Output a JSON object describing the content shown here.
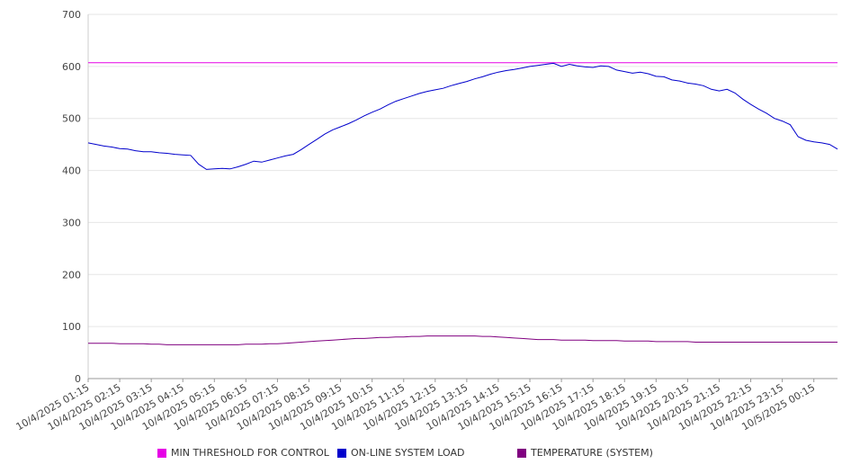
{
  "chart_data": {
    "type": "line",
    "ylim": [
      0,
      700
    ],
    "yticks": [
      0,
      100,
      200,
      300,
      400,
      500,
      600,
      700
    ],
    "x_tick_labels": [
      "10/4/2025 01:15",
      "10/4/2025 02:15",
      "10/4/2025 03:15",
      "10/4/2025 04:15",
      "10/4/2025 05:15",
      "10/4/2025 06:15",
      "10/4/2025 07:15",
      "10/4/2025 08:15",
      "10/4/2025 09:15",
      "10/4/2025 10:15",
      "10/4/2025 11:15",
      "10/4/2025 12:15",
      "10/4/2025 13:15",
      "10/4/2025 14:15",
      "10/4/2025 15:15",
      "10/4/2025 16:15",
      "10/4/2025 17:15",
      "10/4/2025 18:15",
      "10/4/2025 19:15",
      "10/4/2025 20:15",
      "10/4/2025 21:15",
      "10/4/2025 22:15",
      "10/4/2025 23:15",
      "10/5/2025 00:15"
    ],
    "x_hours": [
      1.25,
      1.5,
      1.75,
      2,
      2.25,
      2.5,
      2.75,
      3,
      3.25,
      3.5,
      3.75,
      4,
      4.25,
      4.5,
      4.75,
      5,
      5.25,
      5.5,
      5.75,
      6,
      6.25,
      6.5,
      6.75,
      7,
      7.25,
      7.5,
      7.75,
      8,
      8.25,
      8.5,
      8.75,
      9,
      9.25,
      9.5,
      9.75,
      10,
      10.25,
      10.5,
      10.75,
      11,
      11.25,
      11.5,
      11.75,
      12,
      12.25,
      12.5,
      12.75,
      13,
      13.25,
      13.5,
      13.75,
      14,
      14.25,
      14.5,
      14.75,
      15,
      15.25,
      15.5,
      15.75,
      16,
      16.25,
      16.5,
      16.75,
      17,
      17.25,
      17.5,
      17.75,
      18,
      18.25,
      18.5,
      18.75,
      19,
      19.25,
      19.5,
      19.75,
      20,
      20.25,
      20.5,
      20.75,
      21,
      21.25,
      21.5,
      21.75,
      22,
      22.25,
      22.5,
      22.75,
      23,
      23.25,
      23.5,
      23.75,
      24,
      24.25,
      24.5,
      24.75,
      25
    ],
    "series": [
      {
        "name": "MIN THRESHOLD FOR CONTROL",
        "color": "#e600e6",
        "values": [
          607,
          607
        ]
      },
      {
        "name": "ON-LINE SYSTEM LOAD",
        "color": "#0000cc",
        "values": [
          453,
          450,
          447,
          445,
          442,
          441,
          438,
          436,
          436,
          434,
          433,
          431,
          430,
          429,
          412,
          402,
          403,
          404,
          403,
          407,
          412,
          418,
          416,
          420,
          424,
          428,
          431,
          440,
          450,
          460,
          470,
          478,
          484,
          490,
          497,
          505,
          512,
          518,
          526,
          533,
          538,
          543,
          548,
          552,
          555,
          558,
          563,
          567,
          571,
          576,
          580,
          585,
          589,
          592,
          594,
          597,
          600,
          602,
          604,
          606,
          600,
          604,
          601,
          599,
          598,
          601,
          600,
          593,
          590,
          587,
          589,
          586,
          581,
          580,
          574,
          572,
          568,
          566,
          563,
          556,
          553,
          556,
          549,
          537,
          527,
          518,
          510,
          500,
          495,
          488,
          465,
          458,
          455,
          453,
          450,
          441
        ]
      },
      {
        "name": "TEMPERATURE (SYSTEM)",
        "color": "#800080",
        "values": [
          68,
          68,
          68,
          68,
          67,
          67,
          67,
          67,
          66,
          66,
          65,
          65,
          65,
          65,
          65,
          65,
          65,
          65,
          65,
          65,
          66,
          66,
          66,
          67,
          67,
          68,
          69,
          70,
          71,
          72,
          73,
          74,
          75,
          76,
          77,
          77,
          78,
          79,
          79,
          80,
          80,
          81,
          81,
          82,
          82,
          82,
          82,
          82,
          82,
          82,
          81,
          81,
          80,
          79,
          78,
          77,
          76,
          75,
          75,
          75,
          74,
          74,
          74,
          74,
          73,
          73,
          73,
          73,
          72,
          72,
          72,
          72,
          71,
          71,
          71,
          71,
          71,
          70,
          70,
          70,
          70,
          70,
          70,
          70,
          70,
          70,
          70,
          70,
          70,
          70,
          70,
          70,
          70,
          70,
          70,
          70
        ]
      }
    ],
    "legend_position": "bottom",
    "grid": true
  }
}
